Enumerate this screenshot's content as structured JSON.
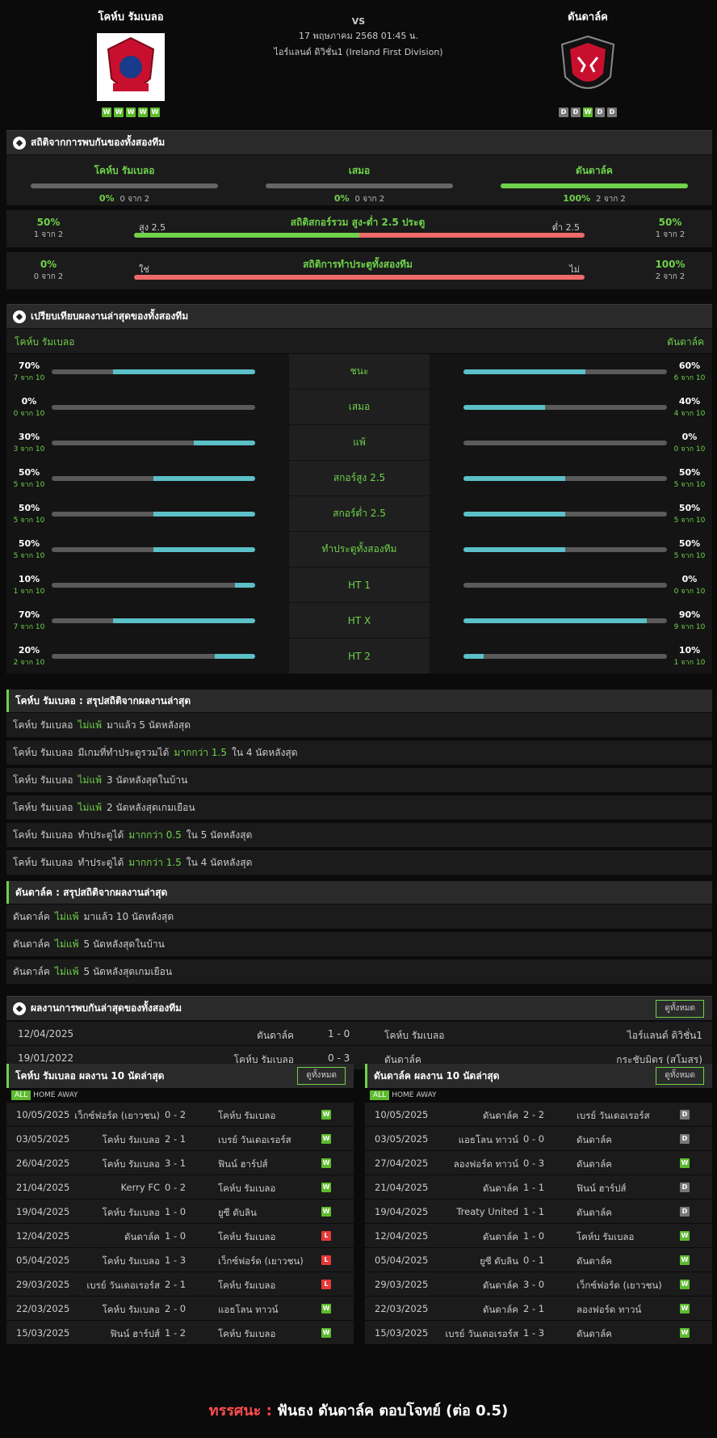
{
  "match": {
    "home": "โคห์บ รัมเบลอ",
    "away": "ดันดาล์ค",
    "vs": "VS",
    "datetime": "17 พฤษภาคม 2568 01:45 น.",
    "league": "ไอร์แลนด์ ดิวิชั่น1 (Ireland First Division)",
    "home_form": [
      "W",
      "W",
      "W",
      "W",
      "W"
    ],
    "away_form": [
      "D",
      "D",
      "W",
      "D",
      "D"
    ]
  },
  "h2h_section": {
    "title": "สถิติจากการพบกันของทั้งสองทีม",
    "home": {
      "label": "โคห์บ รัมเบลอ",
      "pct": "0%",
      "count": "0 จาก 2",
      "fill": 0
    },
    "draw": {
      "label": "เสมอ",
      "pct": "0%",
      "count": "0 จาก 2",
      "fill": 0
    },
    "away": {
      "label": "ดันดาล์ค",
      "pct": "100%",
      "count": "2 จาก 2",
      "fill": 1
    },
    "ou": {
      "title": "สถิติสกอร์รวม สูง-ต่ำ 2.5 ประตู",
      "left_label": "สูง 2.5",
      "right_label": "ต่ำ 2.5",
      "left_pct": "50%",
      "left_count": "1 จาก 2",
      "right_pct": "50%",
      "right_count": "1 จาก 2",
      "left_fill": 0.5
    },
    "btts": {
      "title": "สถิติการทำประตูทั้งสองทีม",
      "left_label": "ใช่",
      "right_label": "ไม่",
      "left_pct": "0%",
      "left_count": "0 จาก 2",
      "right_pct": "100%",
      "right_count": "2 จาก 2",
      "left_fill": 0
    }
  },
  "compare": {
    "title": "เปรียบเทียบผลงานล่าสุดของทั้งสองทีม",
    "home": "โคห์บ รัมเบลอ",
    "away": "ดันดาล์ค",
    "rows": [
      {
        "label": "ชนะ",
        "hp": "70%",
        "hc": "7 จาก 10",
        "hf": 0.7,
        "ap": "60%",
        "ac": "6 จาก 10",
        "af": 0.6
      },
      {
        "label": "เสมอ",
        "hp": "0%",
        "hc": "0 จาก 10",
        "hf": 0,
        "ap": "40%",
        "ac": "4 จาก 10",
        "af": 0.4
      },
      {
        "label": "แพ้",
        "hp": "30%",
        "hc": "3 จาก 10",
        "hf": 0.3,
        "ap": "0%",
        "ac": "0 จาก 10",
        "af": 0
      },
      {
        "label": "สกอร์สูง 2.5",
        "hp": "50%",
        "hc": "5 จาก 10",
        "hf": 0.5,
        "ap": "50%",
        "ac": "5 จาก 10",
        "af": 0.5
      },
      {
        "label": "สกอร์ต่ำ 2.5",
        "hp": "50%",
        "hc": "5 จาก 10",
        "hf": 0.5,
        "ap": "50%",
        "ac": "5 จาก 10",
        "af": 0.5
      },
      {
        "label": "ทำประตูทั้งสองทีม",
        "hp": "50%",
        "hc": "5 จาก 10",
        "hf": 0.5,
        "ap": "50%",
        "ac": "5 จาก 10",
        "af": 0.5
      },
      {
        "label": "HT 1",
        "hp": "10%",
        "hc": "1 จาก 10",
        "hf": 0.1,
        "ap": "0%",
        "ac": "0 จาก 10",
        "af": 0
      },
      {
        "label": "HT X",
        "hp": "70%",
        "hc": "7 จาก 10",
        "hf": 0.7,
        "ap": "90%",
        "ac": "9 จาก 10",
        "af": 0.9
      },
      {
        "label": "HT 2",
        "hp": "20%",
        "hc": "2 จาก 10",
        "hf": 0.2,
        "ap": "10%",
        "ac": "1 จาก 10",
        "af": 0.1
      }
    ]
  },
  "home_summary": {
    "title": "โคห์บ รัมเบลอ : สรุปสถิติจากผลงานล่าสุด",
    "rows": [
      [
        "โคห์บ รัมเบลอ",
        "ไม่แพ้",
        "มาแล้ว 5 นัดหลังสุด"
      ],
      [
        "โคห์บ รัมเบลอ",
        "มีเกมที่ทำประตูรวมได้",
        "มากกว่า 1.5",
        "ใน 4 นัดหลังสุด"
      ],
      [
        "โคห์บ รัมเบลอ",
        "ไม่แพ้",
        "3  นัดหลังสุดในบ้าน"
      ],
      [
        "โคห์บ รัมเบลอ",
        "ไม่แพ้",
        "2  นัดหลังสุดเกมเยือน"
      ],
      [
        "โคห์บ รัมเบลอ",
        "ทำประตูได้",
        "มากกว่า 0.5",
        "ใน 5 นัดหลังสุด"
      ],
      [
        "โคห์บ รัมเบลอ",
        "ทำประตูได้",
        "มากกว่า 1.5",
        "ใน 4 นัดหลังสุด"
      ]
    ]
  },
  "away_summary": {
    "title": "ดันดาล์ค : สรุปสถิติจากผลงานล่าสุด",
    "rows": [
      [
        "ดันดาล์ค",
        "ไม่แพ้",
        "มาแล้ว 10 นัดหลังสุด"
      ],
      [
        "ดันดาล์ค",
        "ไม่แพ้",
        "5  นัดหลังสุดในบ้าน"
      ],
      [
        "ดันดาล์ค",
        "ไม่แพ้",
        "5  นัดหลังสุดเกมเยือน"
      ]
    ]
  },
  "h2h_list": {
    "title": "ผลงานการพบกันล่าสุดของทั้งสองทีม",
    "view_all": "ดูทั้งหมด",
    "rows": [
      {
        "date": "12/04/2025",
        "home": "ดันดาล์ค",
        "score": "1 - 0",
        "away": "โคห์บ รัมเบลอ",
        "comp": "ไอร์แลนด์ ดิวิชั่น1"
      },
      {
        "date": "19/01/2022",
        "home": "โคห์บ รัมเบลอ",
        "score": "0 - 3",
        "away": "ดันดาล์ค",
        "comp": "กระชับมิตร (สโมสร)"
      }
    ]
  },
  "tabs": {
    "all": "ALL",
    "home": "HOME",
    "away": "AWAY"
  },
  "home_last10": {
    "title": "โคห์บ รัมเบลอ ผลงาน 10 นัดล่าสุด",
    "view_all": "ดูทั้งหมด",
    "rows": [
      [
        "10/05/2025",
        "เว็กซ์ฟอร์ด (เยาวชน)",
        "0 - 2",
        "โคห์บ รัมเบลอ",
        "W"
      ],
      [
        "03/05/2025",
        "โคห์บ รัมเบลอ",
        "2 - 1",
        "เบรย์ วันเดอเรอร์ส",
        "W"
      ],
      [
        "26/04/2025",
        "โคห์บ รัมเบลอ",
        "3 - 1",
        "ฟินน์ ฮาร์ปส์",
        "W"
      ],
      [
        "21/04/2025",
        "Kerry FC",
        "0 - 2",
        "โคห์บ รัมเบลอ",
        "W"
      ],
      [
        "19/04/2025",
        "โคห์บ รัมเบลอ",
        "1 - 0",
        "ยูซี ดับลิน",
        "W"
      ],
      [
        "12/04/2025",
        "ดันดาล์ค",
        "1 - 0",
        "โคห์บ รัมเบลอ",
        "L"
      ],
      [
        "05/04/2025",
        "โคห์บ รัมเบลอ",
        "1 - 3",
        "เว็กซ์ฟอร์ด (เยาวชน)",
        "L"
      ],
      [
        "29/03/2025",
        "เบรย์ วันเดอเรอร์ส",
        "2 - 1",
        "โคห์บ รัมเบลอ",
        "L"
      ],
      [
        "22/03/2025",
        "โคห์บ รัมเบลอ",
        "2 - 0",
        "แอธโลน ทาวน์",
        "W"
      ],
      [
        "15/03/2025",
        "ฟินน์ ฮาร์ปส์",
        "1 - 2",
        "โคห์บ รัมเบลอ",
        "W"
      ]
    ]
  },
  "away_last10": {
    "title": "ดันดาล์ค ผลงาน 10 นัดล่าสุด",
    "view_all": "ดูทั้งหมด",
    "rows": [
      [
        "10/05/2025",
        "ดันดาล์ค",
        "2 - 2",
        "เบรย์ วันเดอเรอร์ส",
        "D"
      ],
      [
        "03/05/2025",
        "แอธโลน ทาวน์",
        "0 - 0",
        "ดันดาล์ค",
        "D"
      ],
      [
        "27/04/2025",
        "ลองฟอร์ด ทาวน์",
        "0 - 3",
        "ดันดาล์ค",
        "W"
      ],
      [
        "21/04/2025",
        "ดันดาล์ค",
        "1 - 1",
        "ฟินน์ ฮาร์ปส์",
        "D"
      ],
      [
        "19/04/2025",
        "Treaty United",
        "1 - 1",
        "ดันดาล์ค",
        "D"
      ],
      [
        "12/04/2025",
        "ดันดาล์ค",
        "1 - 0",
        "โคห์บ รัมเบลอ",
        "W"
      ],
      [
        "05/04/2025",
        "ยูซี ดับลิน",
        "0 - 1",
        "ดันดาล์ค",
        "W"
      ],
      [
        "29/03/2025",
        "ดันดาล์ค",
        "3 - 0",
        "เว็กซ์ฟอร์ด (เยาวชน)",
        "W"
      ],
      [
        "22/03/2025",
        "ดันดาล์ค",
        "2 - 1",
        "ลองฟอร์ด ทาวน์",
        "W"
      ],
      [
        "15/03/2025",
        "เบรย์ วันเดอเรอร์ส",
        "1 - 3",
        "ดันดาล์ค",
        "W"
      ]
    ]
  },
  "tip": {
    "label": "ทรรศนะ :",
    "text": "ฟันธง ดันดาล์ค ตอบโจทย์ (ต่อ 0.5)"
  },
  "colors": {
    "green": "#6fd24a",
    "teal": "#5bc0c8",
    "red": "#f06a6a",
    "win": "#5dbb2d",
    "draw": "#777777",
    "loss": "#e53935"
  }
}
